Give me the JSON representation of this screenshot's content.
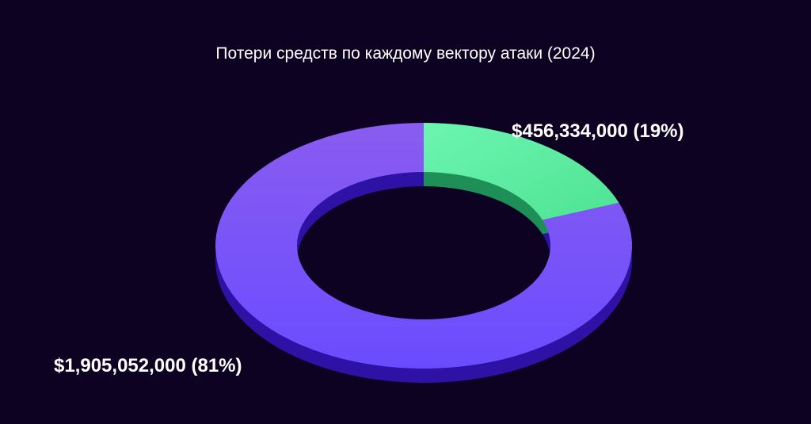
{
  "chart_data": {
    "type": "pie",
    "title": "Потери средств по каждому вектору атаки (2024)",
    "donut": true,
    "slices": [
      {
        "value": 456334000,
        "percent": 19,
        "label": "$456,334,000 (19%)",
        "color": "#5ff0a4",
        "side_color": "#1f8f58"
      },
      {
        "value": 1905052000,
        "percent": 81,
        "label": "$1,905,052,000 (81%)",
        "color": "#7a56f6",
        "side_color": "#2e12a6"
      }
    ]
  },
  "background_color": "#0d0221"
}
